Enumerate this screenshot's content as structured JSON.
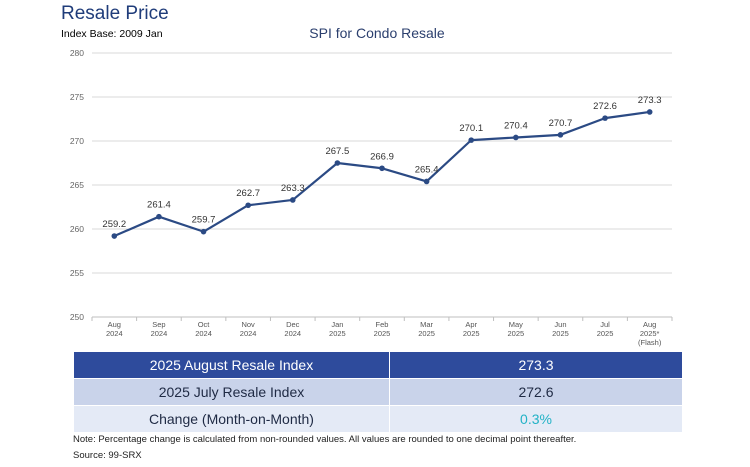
{
  "header": {
    "title": "Resale Price",
    "index_base": "Index Base: 2009 Jan"
  },
  "chart_data": {
    "type": "line",
    "title": "SPI for Condo Resale",
    "xlabel": "",
    "ylabel": "",
    "ylim": [
      250,
      280
    ],
    "yticks": [
      "250",
      "255",
      "260",
      "265",
      "270",
      "275",
      "280"
    ],
    "categories": [
      {
        "line1": "Aug",
        "line2": "2024",
        "line3": ""
      },
      {
        "line1": "Sep",
        "line2": "2024",
        "line3": ""
      },
      {
        "line1": "Oct",
        "line2": "2024",
        "line3": ""
      },
      {
        "line1": "Nov",
        "line2": "2024",
        "line3": ""
      },
      {
        "line1": "Dec",
        "line2": "2024",
        "line3": ""
      },
      {
        "line1": "Jan",
        "line2": "2025",
        "line3": ""
      },
      {
        "line1": "Feb",
        "line2": "2025",
        "line3": ""
      },
      {
        "line1": "Mar",
        "line2": "2025",
        "line3": ""
      },
      {
        "line1": "Apr",
        "line2": "2025",
        "line3": ""
      },
      {
        "line1": "May",
        "line2": "2025",
        "line3": ""
      },
      {
        "line1": "Jun",
        "line2": "2025",
        "line3": ""
      },
      {
        "line1": "Jul",
        "line2": "2025",
        "line3": ""
      },
      {
        "line1": "Aug",
        "line2": "2025*",
        "line3": "(Flash)"
      }
    ],
    "values": [
      259.2,
      261.4,
      259.7,
      262.7,
      263.3,
      267.5,
      266.9,
      265.4,
      270.1,
      270.4,
      270.7,
      272.6,
      273.3
    ],
    "value_labels": [
      "259.2",
      "261.4",
      "259.7",
      "262.7",
      "263.3",
      "267.5",
      "266.9",
      "265.4",
      "270.1",
      "270.4",
      "270.7",
      "272.6",
      "273.3"
    ],
    "grid": true,
    "line_color": "#2b4a84",
    "grid_color": "#d9d9d9"
  },
  "table": {
    "rows": [
      {
        "label": "2025 August Resale Index",
        "value": "273.3"
      },
      {
        "label": "2025 July Resale Index",
        "value": "272.6"
      },
      {
        "label": "Change (Month-on-Month)",
        "value": "0.3%"
      }
    ]
  },
  "footer": {
    "note": "Note: Percentage change is calculated from non-rounded values.  All values are rounded to one decimal point thereafter.",
    "source": "Source: 99-SRX"
  }
}
